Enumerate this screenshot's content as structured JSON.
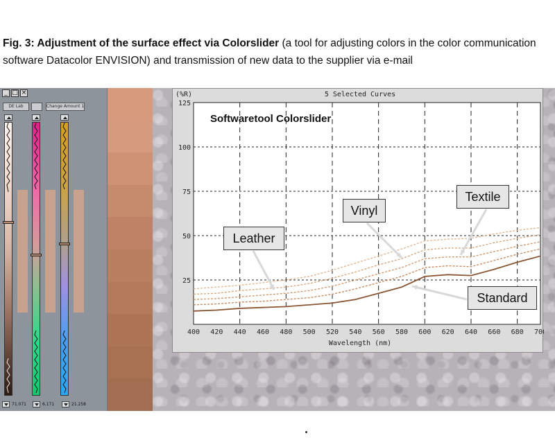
{
  "caption": {
    "bold": "Fig. 3: Adjustment of the surface effect via Colorslider",
    "rest": " (a tool for adjusting colors in the color communication software Datacolor ENVISION) and transmission of new data to the supplier via e-mail"
  },
  "slider_panel": {
    "window_buttons": [
      "_",
      "□",
      "×"
    ],
    "slider1": {
      "label": "DE Lab",
      "value": "71.071"
    },
    "slider2": {
      "label": "",
      "value": "6.171"
    },
    "slider3": {
      "label": "Change Amount 1:1",
      "value": "21.258"
    }
  },
  "swatch_colors": [
    "#d89a7d",
    "#d69a7e",
    "#cf9274",
    "#c68a6d",
    "#bf8266",
    "#b9805f",
    "#b37b5b",
    "#ad7556",
    "#a77152",
    "#a26d50"
  ],
  "chart_data": {
    "type": "line",
    "window_title": "5 Selected Curves",
    "title": "Softwaretool Colorslider",
    "unit_label": "(%R)",
    "xlabel": "Wavelength (nm)",
    "xlim": [
      400,
      700
    ],
    "ylim": [
      0,
      125
    ],
    "x_ticks": [
      400,
      420,
      440,
      460,
      480,
      500,
      520,
      540,
      560,
      580,
      600,
      620,
      640,
      660,
      680,
      700
    ],
    "y_ticks": [
      25,
      50,
      75,
      100,
      125
    ],
    "x": [
      400,
      420,
      440,
      460,
      480,
      500,
      520,
      540,
      560,
      580,
      600,
      620,
      640,
      660,
      680,
      700
    ],
    "series": [
      {
        "values": [
          7.5,
          8.0,
          9.0,
          9.5,
          10.0,
          11.0,
          12.0,
          14.0,
          17.5,
          21.0,
          27.0,
          28.0,
          27.5,
          31.0,
          35.0,
          38.5
        ],
        "style": "solid",
        "color": "#8a5532"
      },
      {
        "values": [
          11.0,
          11.5,
          12.5,
          13.0,
          14.0,
          15.0,
          17.0,
          20.0,
          23.5,
          27.0,
          32.0,
          33.0,
          32.5,
          36.0,
          39.5,
          42.5
        ],
        "style": "dashed",
        "color": "#c98a5f"
      },
      {
        "values": [
          14.0,
          14.5,
          15.5,
          16.5,
          17.5,
          19.0,
          21.5,
          25.0,
          28.5,
          32.0,
          37.0,
          38.0,
          38.0,
          41.0,
          44.0,
          46.5
        ],
        "style": "dashed",
        "color": "#d49a6d"
      },
      {
        "values": [
          17.0,
          17.5,
          19.0,
          20.0,
          21.0,
          23.0,
          26.0,
          29.5,
          33.5,
          37.0,
          42.0,
          43.0,
          43.0,
          46.0,
          48.5,
          50.5
        ],
        "style": "dashed",
        "color": "#dcaa80"
      },
      {
        "values": [
          20.0,
          21.0,
          22.0,
          23.5,
          25.0,
          27.0,
          30.5,
          34.5,
          38.5,
          42.5,
          47.0,
          48.0,
          48.5,
          51.0,
          53.0,
          54.5
        ],
        "style": "dashed",
        "color": "#e3b893"
      }
    ],
    "callouts": [
      {
        "text": "Leather"
      },
      {
        "text": "Vinyl"
      },
      {
        "text": "Textile"
      },
      {
        "text": "Standard"
      }
    ]
  }
}
